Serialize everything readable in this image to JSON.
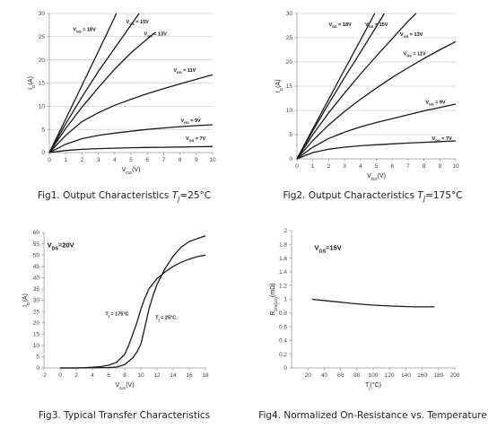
{
  "chart_data": [
    {
      "id": "fig1",
      "type": "line",
      "caption_prefix": "Fig1. Output Characteristics ",
      "caption_italic": "T",
      "caption_sub": "j",
      "caption_suffix": "=25°C",
      "xlabel": "V",
      "xlabel_sub": "DS",
      "xlabel_unit": "(V)",
      "ylabel": "I",
      "ylabel_sub": "D",
      "ylabel_unit": "(A)",
      "xlim": [
        0,
        10
      ],
      "ylim": [
        0,
        30
      ],
      "xticks": [
        0,
        1,
        2,
        3,
        4,
        5,
        6,
        7,
        8,
        9,
        10
      ],
      "yticks": [
        0,
        5,
        10,
        15,
        20,
        25,
        30
      ],
      "grid": "horizontal",
      "series": [
        {
          "name": "VGS = 18V",
          "x": [
            0,
            1,
            2,
            3,
            4,
            4.1
          ],
          "y": [
            0,
            7.2,
            14.5,
            21.8,
            29.2,
            30
          ]
        },
        {
          "name": "VGS = 15V",
          "x": [
            0,
            1,
            2,
            3,
            4,
            5,
            5.5
          ],
          "y": [
            0,
            6.2,
            12,
            17.5,
            22.5,
            27.5,
            30
          ]
        },
        {
          "name": "VGS = 13V",
          "x": [
            0,
            1,
            2,
            3,
            4,
            5,
            6,
            6.5
          ],
          "y": [
            0,
            5.2,
            9.8,
            14,
            18,
            21.5,
            24.5,
            26
          ]
        },
        {
          "name": "VGS = 11V",
          "x": [
            0,
            1,
            2,
            3,
            4,
            5,
            6,
            7,
            8,
            9,
            10
          ],
          "y": [
            0,
            3.7,
            6.7,
            8.6,
            10.2,
            11.5,
            12.7,
            13.8,
            14.8,
            15.8,
            16.8
          ]
        },
        {
          "name": "VGS = 9V",
          "x": [
            0,
            1,
            2,
            3,
            4,
            5,
            6,
            7,
            8,
            9,
            10
          ],
          "y": [
            0,
            1.8,
            3,
            3.7,
            4.2,
            4.6,
            5,
            5.3,
            5.6,
            5.8,
            6
          ]
        },
        {
          "name": "VGS = 7V",
          "x": [
            0,
            1,
            2,
            3,
            4,
            5,
            6,
            7,
            8,
            9,
            10
          ],
          "y": [
            0,
            0.45,
            0.7,
            0.85,
            0.95,
            1.05,
            1.1,
            1.15,
            1.2,
            1.25,
            1.3
          ]
        }
      ],
      "labels": [
        {
          "text": "V",
          "sub": "GS",
          "val": " = 18V",
          "x": 1.45,
          "y": 26.2
        },
        {
          "text": "V",
          "sub": "GS",
          "val": " = 15V",
          "x": 4.7,
          "y": 27.9
        },
        {
          "text": "V",
          "sub": "GS",
          "val": " = 13V",
          "x": 5.8,
          "y": 25.3
        },
        {
          "text": "V",
          "sub": "GS",
          "val": " = 11V",
          "x": 7.6,
          "y": 17.4
        },
        {
          "text": "V",
          "sub": "GS",
          "val": " = 9V",
          "x": 8.05,
          "y": 6.6
        },
        {
          "text": "V",
          "sub": "GS",
          "val": " = 7V",
          "x": 8.35,
          "y": 2.7
        }
      ]
    },
    {
      "id": "fig2",
      "type": "line",
      "caption_prefix": "Fig2. Output Characteristics ",
      "caption_italic": "T",
      "caption_sub": "j",
      "caption_suffix": "=175°C",
      "xlabel": "V",
      "xlabel_sub": "DS",
      "xlabel_unit": "(V)",
      "ylabel": "I",
      "ylabel_sub": "D",
      "ylabel_unit": "(A)",
      "xlim": [
        0,
        10
      ],
      "ylim": [
        0,
        30
      ],
      "xticks": [
        0,
        1,
        2,
        3,
        4,
        5,
        6,
        7,
        8,
        9,
        10
      ],
      "yticks": [
        0,
        5,
        10,
        15,
        20,
        25,
        30
      ],
      "grid": "horizontal",
      "series": [
        {
          "name": "VGS = 18V",
          "x": [
            0,
            1,
            2,
            3,
            4,
            4.9
          ],
          "y": [
            0,
            6.2,
            12.3,
            18.4,
            24.5,
            30
          ]
        },
        {
          "name": "VGS = 15V",
          "x": [
            0,
            1,
            2,
            3,
            4,
            5,
            5.5
          ],
          "y": [
            0,
            5.8,
            11.4,
            16.8,
            22,
            27.3,
            30
          ]
        },
        {
          "name": "VGS = 13V",
          "x": [
            0,
            1,
            2,
            3,
            4,
            5,
            6,
            7,
            7.5
          ],
          "y": [
            0,
            5,
            9.5,
            13.6,
            17.5,
            21.2,
            24.8,
            28.4,
            30
          ]
        },
        {
          "name": "VGS = 11V",
          "x": [
            0,
            1,
            2,
            3,
            4,
            5,
            6,
            7,
            8,
            9,
            10
          ],
          "y": [
            0,
            3.8,
            7,
            9.8,
            12.3,
            14.6,
            16.8,
            18.8,
            20.7,
            22.5,
            24.2
          ]
        },
        {
          "name": "VGS = 9V",
          "x": [
            0,
            1,
            2,
            3,
            4,
            5,
            6,
            7,
            8,
            9,
            10
          ],
          "y": [
            0,
            2.4,
            4.2,
            5.5,
            6.6,
            7.5,
            8.3,
            9.1,
            9.9,
            10.6,
            11.3
          ]
        },
        {
          "name": "VGS = 7V",
          "x": [
            0,
            1,
            2,
            3,
            4,
            5,
            6,
            7,
            8,
            9,
            10
          ],
          "y": [
            0,
            1.3,
            2.0,
            2.4,
            2.7,
            2.9,
            3.1,
            3.25,
            3.4,
            3.55,
            3.7
          ]
        }
      ],
      "labels": [
        {
          "text": "V",
          "sub": "GS",
          "val": " = 18V",
          "x": 2.0,
          "y": 27.4
        },
        {
          "text": "V",
          "sub": "GS",
          "val": " = 15V",
          "x": 4.3,
          "y": 27.4
        },
        {
          "text": "V",
          "sub": "GS",
          "val": " = 13V",
          "x": 6.5,
          "y": 25.4
        },
        {
          "text": "V",
          "sub": "GS",
          "val": " = 11V",
          "x": 6.7,
          "y": 21.4
        },
        {
          "text": "V",
          "sub": "GS",
          "val": " = 9V",
          "x": 8.1,
          "y": 11.4
        },
        {
          "text": "V",
          "sub": "GS",
          "val": " = 7V",
          "x": 8.5,
          "y": 3.9
        }
      ]
    },
    {
      "id": "fig3",
      "type": "line",
      "caption_prefix": "Fig3. Typical Transfer Characteristics",
      "caption_italic": "",
      "caption_sub": "",
      "caption_suffix": "",
      "xlabel": "V",
      "xlabel_sub": "GS",
      "xlabel_unit": "(V)",
      "ylabel": "I",
      "ylabel_sub": "D",
      "ylabel_unit": "(A)",
      "xlim": [
        -2,
        18
      ],
      "ylim": [
        0,
        60
      ],
      "xticks": [
        -2,
        0,
        2,
        4,
        6,
        8,
        10,
        12,
        14,
        16,
        18
      ],
      "yticks": [
        0,
        5,
        10,
        15,
        20,
        25,
        30,
        35,
        40,
        45,
        50,
        55,
        60
      ],
      "grid": "none",
      "series": [
        {
          "name": "Tj = 175°C",
          "x": [
            0,
            2,
            3,
            4,
            5,
            6,
            7,
            8,
            8.5,
            9,
            9.5,
            10,
            10.5,
            11,
            12,
            13,
            14,
            15,
            16,
            17,
            18
          ],
          "y": [
            0,
            0,
            0.1,
            0.3,
            0.6,
            1.2,
            2.5,
            6,
            10,
            15,
            20,
            26,
            31,
            35,
            39.5,
            42.5,
            45,
            46.8,
            48.2,
            49.3,
            50
          ]
        },
        {
          "name": "Tj = 25°C",
          "x": [
            0,
            2,
            4,
            6,
            7,
            8,
            9,
            9.5,
            10,
            10.5,
            11,
            11.5,
            12,
            13,
            14,
            15,
            16,
            17,
            18
          ],
          "y": [
            0,
            0,
            0.1,
            0.2,
            0.4,
            1.5,
            4.5,
            7,
            10.5,
            18,
            26,
            32,
            37,
            44,
            49.5,
            53.5,
            56,
            57.3,
            58.5
          ]
        }
      ],
      "labels": [
        {
          "text": "T",
          "sub": "j",
          "val": " = 175°C",
          "x": 5.6,
          "y": 23.2
        },
        {
          "text": "T",
          "sub": "j",
          "val": " = 25°C",
          "x": 11.8,
          "y": 21.7
        }
      ],
      "header_label": {
        "text": "V",
        "sub": "DS",
        "val": "=20V",
        "x": -1.6,
        "y": 53.5
      }
    },
    {
      "id": "fig4",
      "type": "line",
      "caption_prefix": "Fig4. Normalized On-Resistance vs. Temperature",
      "caption_italic": "",
      "caption_sub": "",
      "caption_suffix": "",
      "xlabel": "T",
      "xlabel_sub": "j",
      "xlabel_unit": "(°C)",
      "ylabel": "R",
      "ylabel_sub": "DS(on)",
      "ylabel_unit": "(mΩ)",
      "xlim": [
        0,
        200
      ],
      "ylim": [
        0,
        2
      ],
      "xticks": [
        20,
        40,
        60,
        80,
        100,
        120,
        140,
        160,
        180,
        200
      ],
      "yticks": [
        0,
        0.2,
        0.4,
        0.6,
        0.8,
        1,
        1.2,
        1.4,
        1.6,
        1.8,
        2
      ],
      "ytick_labels": [
        "0",
        "0.2",
        "0.4",
        "0.6",
        "0.8",
        "1",
        "1.2",
        "1.4",
        "1.6",
        "1.8",
        "2"
      ],
      "grid": "none",
      "series": [
        {
          "name": "Normalized RDS(on)",
          "x": [
            25,
            50,
            75,
            100,
            125,
            150,
            175
          ],
          "y": [
            1.0,
            0.97,
            0.94,
            0.915,
            0.9,
            0.89,
            0.89
          ]
        }
      ],
      "labels": [],
      "header_label": {
        "text": "V",
        "sub": "GS",
        "val": "=15V",
        "x": 28,
        "y": 1.72
      }
    }
  ]
}
